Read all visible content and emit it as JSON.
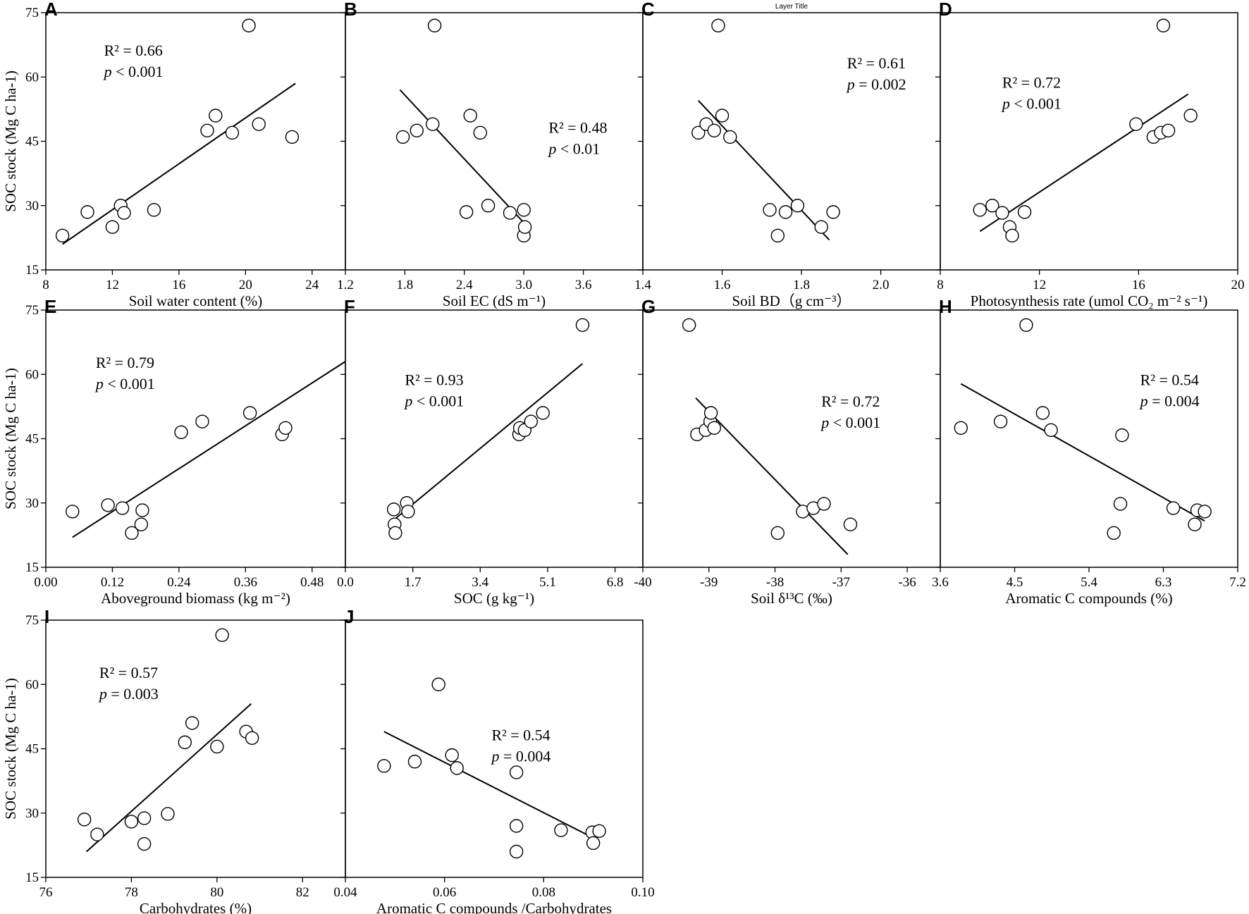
{
  "layer_title": "Layer Title",
  "y_axis_label": "SOC stock (Mg C ha-1)",
  "y_ticks": [
    "15",
    "30",
    "45",
    "60",
    "75"
  ],
  "chart_data": [
    {
      "panel": "A",
      "type": "scatter",
      "xlabel": "Soil water content (%)",
      "xlim": [
        8,
        26
      ],
      "ylim": [
        15,
        75
      ],
      "xticks": [
        8,
        12,
        16,
        20,
        24
      ],
      "xtick_labels": [
        "8",
        "12",
        "16",
        "20",
        "24"
      ],
      "show_first_xtick": true,
      "x": [
        9.0,
        10.5,
        12.0,
        12.5,
        12.7,
        14.5,
        17.7,
        18.2,
        19.2,
        20.2,
        20.8,
        22.8
      ],
      "y": [
        23.0,
        28.5,
        25.0,
        30.0,
        28.3,
        29.0,
        47.5,
        51.0,
        47.0,
        72.0,
        49.0,
        46.0
      ],
      "fit": [
        [
          9.0,
          21.0
        ],
        [
          23.0,
          58.5
        ]
      ],
      "r2": "R² = 0.66",
      "p_label": "p",
      "p_value": " < 0.001",
      "stat_pos": [
        11.5,
        65
      ]
    },
    {
      "panel": "B",
      "type": "scatter",
      "xlabel": "Soil EC (dS m⁻¹)",
      "xlim": [
        1.2,
        4.2
      ],
      "ylim": [
        15,
        75
      ],
      "xticks": [
        1.2,
        1.8,
        2.4,
        3.0,
        3.6
      ],
      "xtick_labels": [
        "1.2",
        "1.8",
        "2.4",
        "3.0",
        "3.6"
      ],
      "show_first_xtick": true,
      "x": [
        1.78,
        1.92,
        2.08,
        2.1,
        2.42,
        2.46,
        2.56,
        2.64,
        2.86,
        3.0,
        3.0,
        3.01
      ],
      "y": [
        46.0,
        47.5,
        49.0,
        72.0,
        28.5,
        51.0,
        47.0,
        30.0,
        28.3,
        29.0,
        23.0,
        25.0
      ],
      "fit": [
        [
          1.75,
          57.0
        ],
        [
          3.0,
          26.0
        ]
      ],
      "r2": "R² = 0.48",
      "p_label": "p",
      "p_value": " < 0.01",
      "stat_pos": [
        3.25,
        47
      ]
    },
    {
      "panel": "C",
      "type": "scatter",
      "xlabel": "Soil BD（g cm⁻³）",
      "xlim": [
        1.4,
        2.15
      ],
      "ylim": [
        15,
        75
      ],
      "xticks": [
        1.4,
        1.6,
        1.8,
        2.0
      ],
      "xtick_labels": [
        "1.4",
        "1.6",
        "1.8",
        "2.0"
      ],
      "show_first_xtick": true,
      "x": [
        1.54,
        1.56,
        1.58,
        1.59,
        1.6,
        1.62,
        1.72,
        1.74,
        1.76,
        1.79,
        1.85,
        1.88
      ],
      "y": [
        47.0,
        49.0,
        47.5,
        72.0,
        51.0,
        46.0,
        29.0,
        23.0,
        28.5,
        30.0,
        25.0,
        28.5
      ],
      "fit": [
        [
          1.54,
          54.5
        ],
        [
          1.87,
          22.0
        ]
      ],
      "r2": "R² = 0.61",
      "p_label": "p",
      "p_value": " = 0.002",
      "stat_pos": [
        1.915,
        62
      ]
    },
    {
      "panel": "D",
      "type": "scatter",
      "xlabel": "Photosynthesis rate (umol CO₂ m⁻² s⁻¹)",
      "xlim": [
        8,
        20
      ],
      "ylim": [
        15,
        75
      ],
      "xticks": [
        8,
        12,
        16,
        20
      ],
      "xtick_labels": [
        "8",
        "12",
        "16",
        "20"
      ],
      "show_first_xtick": true,
      "x": [
        9.6,
        10.1,
        10.5,
        10.8,
        10.9,
        11.4,
        15.9,
        16.6,
        16.9,
        17.0,
        17.2,
        18.1
      ],
      "y": [
        29.0,
        30.0,
        28.3,
        25.0,
        23.0,
        28.5,
        49.0,
        46.0,
        47.0,
        72.0,
        47.5,
        51.0
      ],
      "fit": [
        [
          9.6,
          24.0
        ],
        [
          18.0,
          56.0
        ]
      ],
      "r2": "R² = 0.72",
      "p_label": "p",
      "p_value": " < 0.001",
      "stat_pos": [
        10.5,
        57.5
      ]
    },
    {
      "panel": "E",
      "type": "scatter",
      "xlabel": "Aboveground biomass (kg m⁻²)",
      "xlim": [
        0,
        0.54
      ],
      "ylim": [
        15,
        75
      ],
      "xticks": [
        0,
        0.12,
        0.24,
        0.36,
        0.48
      ],
      "xtick_labels": [
        "0.00",
        "0.12",
        "0.24",
        "0.36",
        "0.48"
      ],
      "show_first_xtick": true,
      "x": [
        0.048,
        0.112,
        0.138,
        0.155,
        0.172,
        0.174,
        0.244,
        0.282,
        0.368,
        0.426,
        0.432
      ],
      "y": [
        28.0,
        29.5,
        28.8,
        23.0,
        25.0,
        28.3,
        46.5,
        49.0,
        51.0,
        46.0,
        47.5
      ],
      "fit": [
        [
          0.048,
          22.0
        ],
        [
          0.54,
          63.0
        ]
      ],
      "r2": "R² = 0.79",
      "p_label": "p",
      "p_value": " < 0.001",
      "stat_pos": [
        0.09,
        61.5
      ]
    },
    {
      "panel": "F",
      "type": "scatter",
      "xlabel": "SOC (g kg⁻¹)",
      "xlim": [
        0,
        7.5
      ],
      "ylim": [
        15,
        75
      ],
      "xticks": [
        0,
        1.7,
        3.4,
        5.1,
        6.8
      ],
      "xtick_labels": [
        "0.0",
        "1.7",
        "3.4",
        "5.1",
        "6.8"
      ],
      "show_first_xtick": true,
      "x": [
        1.22,
        1.24,
        1.26,
        1.55,
        1.58,
        4.38,
        4.4,
        4.52,
        4.68,
        4.98,
        5.98
      ],
      "y": [
        28.5,
        25.0,
        23.0,
        30.0,
        28.0,
        46.0,
        47.5,
        47.0,
        49.0,
        51.0,
        71.5
      ],
      "fit": [
        [
          1.28,
          26.5
        ],
        [
          5.98,
          62.5
        ]
      ],
      "r2": "R² = 0.93",
      "p_label": "p",
      "p_value": " < 0.001",
      "stat_pos": [
        1.5,
        57.5
      ]
    },
    {
      "panel": "G",
      "type": "scatter",
      "xlabel": "Soil δ¹³C (‰)",
      "xlim": [
        -40,
        -35.5
      ],
      "ylim": [
        15,
        75
      ],
      "xticks": [
        -40,
        -39,
        -38,
        -37,
        -36
      ],
      "xtick_labels": [
        "-40",
        "-39",
        "-38",
        "-37",
        "-36"
      ],
      "show_first_xtick": true,
      "x": [
        -39.3,
        -39.18,
        -39.05,
        -38.98,
        -38.97,
        -38.92,
        -37.96,
        -37.58,
        -37.42,
        -37.26,
        -36.86
      ],
      "y": [
        71.5,
        46.0,
        47.0,
        49.0,
        51.0,
        47.5,
        23.0,
        28.0,
        28.8,
        29.8,
        25.0
      ],
      "fit": [
        [
          -39.2,
          54.5
        ],
        [
          -36.9,
          18.0
        ]
      ],
      "r2": "R² = 0.72",
      "p_label": "p",
      "p_value": " < 0.001",
      "stat_pos": [
        -37.3,
        52.5
      ]
    },
    {
      "panel": "H",
      "type": "scatter",
      "xlabel": "Aromatic C compounds (%)",
      "xlim": [
        3.6,
        7.2
      ],
      "ylim": [
        15,
        75
      ],
      "xticks": [
        3.6,
        4.5,
        5.4,
        6.3,
        7.2
      ],
      "xtick_labels": [
        "3.6",
        "4.5",
        "5.4",
        "6.3",
        "7.2"
      ],
      "show_first_xtick": true,
      "x": [
        3.85,
        4.33,
        4.64,
        4.84,
        4.94,
        5.7,
        5.78,
        5.8,
        6.42,
        6.68,
        6.71,
        6.8
      ],
      "y": [
        47.5,
        49.0,
        71.5,
        51.0,
        47.0,
        23.0,
        29.8,
        45.8,
        28.8,
        25.0,
        28.3,
        28.0
      ],
      "fit": [
        [
          3.85,
          57.8
        ],
        [
          6.8,
          25.8
        ]
      ],
      "r2": "R² = 0.54",
      "p_label": "p",
      "p_value": " = 0.004",
      "stat_pos": [
        6.02,
        57.5
      ]
    },
    {
      "panel": "I",
      "type": "scatter",
      "xlabel": "Carbohydrates (%)",
      "xlim": [
        76,
        83
      ],
      "ylim": [
        15,
        75
      ],
      "xticks": [
        76,
        78,
        80,
        82
      ],
      "xtick_labels": [
        "76",
        "78",
        "80",
        "82"
      ],
      "show_first_xtick": true,
      "x": [
        76.9,
        77.2,
        78.0,
        78.3,
        78.3,
        78.85,
        79.25,
        79.42,
        80.0,
        80.12,
        80.68,
        80.82
      ],
      "y": [
        28.5,
        25.0,
        28.0,
        28.8,
        22.8,
        29.8,
        46.5,
        51.0,
        45.5,
        71.5,
        49.0,
        47.5
      ],
      "fit": [
        [
          76.95,
          21.0
        ],
        [
          80.8,
          55.5
        ]
      ],
      "r2": "R² = 0.57",
      "p_label": "p",
      "p_value": " = 0.003",
      "stat_pos": [
        77.25,
        61.5
      ]
    },
    {
      "panel": "J",
      "type": "scatter",
      "xlabel": "Aromatic C compounds /Carbohydrates",
      "xlim": [
        0.04,
        0.1
      ],
      "ylim": [
        15,
        75
      ],
      "xticks": [
        0.04,
        0.06,
        0.08,
        0.1
      ],
      "xtick_labels": [
        "0.04",
        "0.06",
        "0.08",
        "0.10"
      ],
      "show_first_xtick": true,
      "x": [
        0.0478,
        0.054,
        0.0588,
        0.0615,
        0.0625,
        0.0745,
        0.0745,
        0.0745,
        0.0835,
        0.0898,
        0.09,
        0.0912
      ],
      "y": [
        41.0,
        42.0,
        60.0,
        43.5,
        40.5,
        39.5,
        27.0,
        21.0,
        26.0,
        25.5,
        23.0,
        25.8
      ],
      "fit": [
        [
          0.0478,
          49.0
        ],
        [
          0.0912,
          23.5
        ]
      ],
      "r2": "R² = 0.54",
      "p_label": "p",
      "p_value": " = 0.004",
      "stat_pos": [
        0.0695,
        47
      ]
    }
  ]
}
